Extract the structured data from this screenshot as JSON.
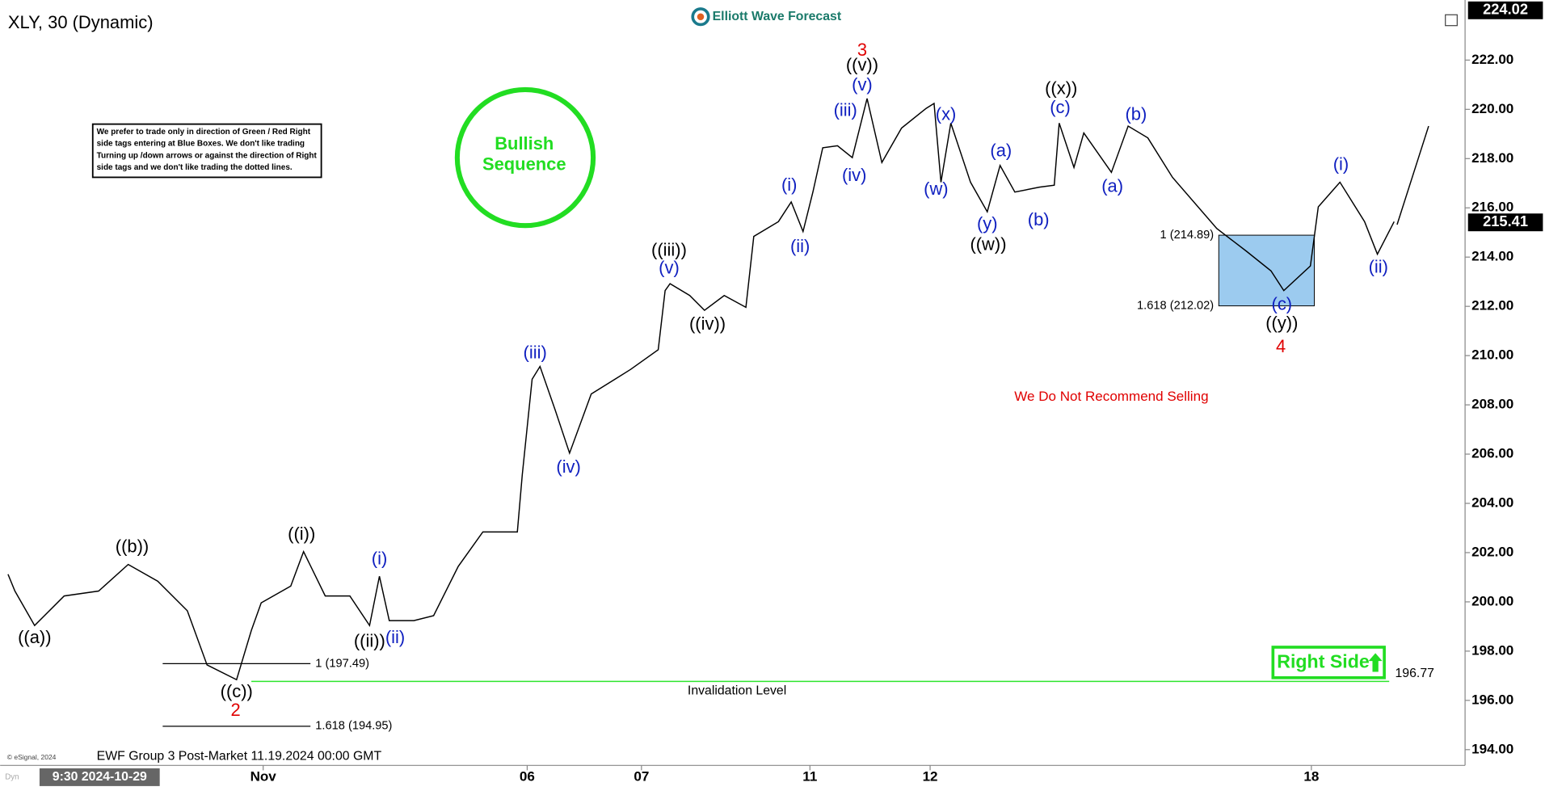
{
  "chart_data": {
    "type": "line",
    "title": "XLY, 30 (Dynamic)",
    "watermark": "Elliott Wave Forecast",
    "note": [
      "We prefer to trade only in direction of Green / Red Right",
      "side tags entering at Blue Boxes. We don't like trading",
      "Turning up /down arrows or against the direction of Right",
      "side tags and we don't like trading the dotted lines."
    ],
    "badge": [
      "Bullish",
      "Sequence"
    ],
    "warning": "We Do Not Recommend Selling",
    "right_side": "Right Side",
    "footer": "EWF Group 3 Post-Market 11.19.2024 00:00 GMT",
    "copyright": "© eSignal, 2024",
    "cursor_label": "9:30 2024-10-29",
    "corner_label": "Dyn",
    "series": [
      {
        "color": "#000000",
        "x": [
          0.8,
          1.5,
          3.5,
          6.5,
          10,
          13,
          16,
          19,
          21,
          24,
          25.5,
          26.5,
          29.5,
          30.8,
          33,
          35.5,
          37.5,
          38.5,
          39.5,
          42,
          44,
          46.5,
          49,
          52.5,
          53,
          54,
          54.8,
          56.3,
          57.8,
          60,
          64,
          66.8,
          67.5,
          68,
          70,
          71.5,
          73.5,
          75.7,
          76.5,
          79,
          80.3,
          81.5,
          82.5,
          83.5,
          85,
          86.5,
          88,
          89.5,
          91.5,
          94,
          94.8,
          95.5,
          96.5,
          98.5,
          100.2,
          101.5,
          103,
          105.5,
          107,
          107.5,
          109,
          110,
          112.8,
          114.5,
          116.5,
          119,
          123.5,
          126.5,
          129,
          130.3,
          133,
          133.8,
          136,
          138.5,
          139.8,
          141.5
        ],
        "values": [
          201.12,
          200.44,
          199.04,
          200.24,
          200.44,
          201.52,
          200.84,
          199.64,
          197.44,
          196.84,
          198.84,
          199.96,
          200.64,
          202.04,
          200.24,
          200.24,
          199.04,
          201.04,
          199.24,
          199.24,
          199.44,
          201.44,
          202.84,
          202.84,
          205.16,
          209.04,
          209.56,
          207.84,
          206.04,
          208.44,
          209.44,
          210.24,
          212.64,
          212.92,
          212.44,
          211.84,
          212.44,
          211.96,
          214.84,
          215.44,
          216.24,
          215.04,
          216.64,
          218.44,
          218.52,
          218.04,
          220.44,
          217.84,
          219.24,
          220.04,
          220.24,
          217.04,
          219.44,
          217.04,
          215.84,
          217.72,
          216.64,
          216.84,
          216.92,
          219.44,
          217.64,
          219.04,
          217.44,
          219.32,
          218.84,
          217.24,
          215.16,
          214.24,
          213.44,
          212.64,
          213.64,
          216.04,
          217.04,
          215.44,
          214.12,
          215.44
        ]
      },
      {
        "color": "#000000",
        "x": [
          141.8,
          145
        ],
        "values": [
          215.32,
          219.32
        ]
      }
    ],
    "xlim": [
      0.5,
      148.7
    ],
    "xticks": [
      {
        "value": 26.7,
        "label": "Nov"
      },
      {
        "value": 53.5,
        "label": "06"
      },
      {
        "value": 65.1,
        "label": "07"
      },
      {
        "value": 82.2,
        "label": "11"
      },
      {
        "value": 94.4,
        "label": "12"
      },
      {
        "value": 133.1,
        "label": "18"
      }
    ],
    "ylim": [
      193.36,
      224.12
    ],
    "yticks": [
      {
        "value": 194,
        "label": "194.00"
      },
      {
        "value": 196,
        "label": "196.00"
      },
      {
        "value": 198,
        "label": "198.00"
      },
      {
        "value": 200,
        "label": "200.00"
      },
      {
        "value": 202,
        "label": "202.00"
      },
      {
        "value": 204,
        "label": "204.00"
      },
      {
        "value": 206,
        "label": "206.00"
      },
      {
        "value": 208,
        "label": "208.00"
      },
      {
        "value": 210,
        "label": "210.00"
      },
      {
        "value": 212,
        "label": "212.00"
      },
      {
        "value": 214,
        "label": "214.00"
      },
      {
        "value": 216,
        "label": "216.00"
      },
      {
        "value": 218,
        "label": "218.00"
      },
      {
        "value": 220,
        "label": "220.00"
      },
      {
        "value": 222,
        "label": "222.00"
      }
    ],
    "high_price": 224.02,
    "last_price": 215.41,
    "fib_levels": [
      {
        "value": 197.49,
        "label": "1 (197.49)"
      },
      {
        "value": 194.95,
        "label": "1.618 (194.95)"
      },
      {
        "value": 214.89,
        "label": "1 (214.89)"
      },
      {
        "value": 212.02,
        "label": "1.618 (212.02)"
      }
    ],
    "box_color": "#9ccbef",
    "invalidation": {
      "value": 196.77,
      "label": "Invalidation Level",
      "color": "#2ee52e"
    },
    "annotations": [
      {
        "text": "((a))",
        "color": "#000000"
      },
      {
        "text": "((b))",
        "color": "#000000"
      },
      {
        "text": "((c))",
        "color": "#000000"
      },
      {
        "text": "2",
        "color": "#e00000"
      },
      {
        "text": "((i))",
        "color": "#000000"
      },
      {
        "text": "((ii))",
        "color": "#000000"
      },
      {
        "text": "(i)",
        "color": "#1020c0"
      },
      {
        "text": "(ii)",
        "color": "#1020c0"
      },
      {
        "text": "(iii)",
        "color": "#1020c0"
      },
      {
        "text": "(iv)",
        "color": "#1020c0"
      },
      {
        "text": "((iii))",
        "color": "#000000"
      },
      {
        "text": "(v)",
        "color": "#1020c0"
      },
      {
        "text": "((iv))",
        "color": "#000000"
      },
      {
        "text": "(i)",
        "color": "#1020c0"
      },
      {
        "text": "(ii)",
        "color": "#1020c0"
      },
      {
        "text": "(iii)",
        "color": "#1020c0"
      },
      {
        "text": "(iv)",
        "color": "#1020c0"
      },
      {
        "text": "(v)",
        "color": "#1020c0"
      },
      {
        "text": "((v))",
        "color": "#000000"
      },
      {
        "text": "3",
        "color": "#e00000"
      },
      {
        "text": "(x)",
        "color": "#1020c0"
      },
      {
        "text": "(w)",
        "color": "#1020c0"
      },
      {
        "text": "(a)",
        "color": "#1020c0"
      },
      {
        "text": "(y)",
        "color": "#1020c0"
      },
      {
        "text": "((w))",
        "color": "#000000"
      },
      {
        "text": "(b)",
        "color": "#1020c0"
      },
      {
        "text": "((x))",
        "color": "#000000"
      },
      {
        "text": "(c)",
        "color": "#1020c0"
      },
      {
        "text": "(a)",
        "color": "#1020c0"
      },
      {
        "text": "(b)",
        "color": "#1020c0"
      },
      {
        "text": "(c)",
        "color": "#1020c0"
      },
      {
        "text": "((y))",
        "color": "#000000"
      },
      {
        "text": "4",
        "color": "#e00000"
      },
      {
        "text": "(i)",
        "color": "#1020c0"
      },
      {
        "text": "(ii)",
        "color": "#1020c0"
      }
    ]
  }
}
